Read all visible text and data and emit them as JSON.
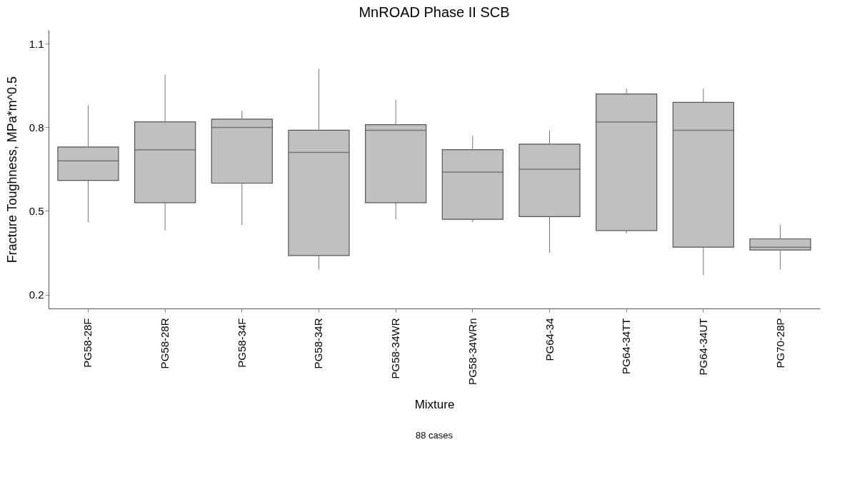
{
  "chart_data": {
    "type": "box",
    "title": "MnROAD Phase II SCB",
    "xlabel": "Mixture",
    "ylabel": "Fracture Toughness, MPa*m^0.5",
    "categories": [
      "PG58-28F",
      "PG58-28R",
      "PG58-34F",
      "PG58-34R",
      "PG58-34WR",
      "PG58-34WRn",
      "PG64-34",
      "PG64-34TT",
      "PG64-34UT",
      "PG70-28P"
    ],
    "boxes": [
      {
        "low": 0.46,
        "q1": 0.61,
        "median": 0.68,
        "q3": 0.73,
        "high": 0.88
      },
      {
        "low": 0.43,
        "q1": 0.53,
        "median": 0.72,
        "q3": 0.82,
        "high": 0.99
      },
      {
        "low": 0.45,
        "q1": 0.6,
        "median": 0.8,
        "q3": 0.83,
        "high": 0.86
      },
      {
        "low": 0.29,
        "q1": 0.34,
        "median": 0.71,
        "q3": 0.79,
        "high": 1.01
      },
      {
        "low": 0.47,
        "q1": 0.53,
        "median": 0.79,
        "q3": 0.81,
        "high": 0.9
      },
      {
        "low": 0.46,
        "q1": 0.47,
        "median": 0.64,
        "q3": 0.72,
        "high": 0.77
      },
      {
        "low": 0.35,
        "q1": 0.48,
        "median": 0.65,
        "q3": 0.74,
        "high": 0.79
      },
      {
        "low": 0.42,
        "q1": 0.43,
        "median": 0.82,
        "q3": 0.92,
        "high": 0.94
      },
      {
        "low": 0.27,
        "q1": 0.37,
        "median": 0.79,
        "q3": 0.89,
        "high": 0.94
      },
      {
        "low": 0.29,
        "q1": 0.36,
        "median": 0.37,
        "q3": 0.4,
        "high": 0.45
      }
    ],
    "color": "#c0c0c0",
    "ylim": [
      0.15,
      1.15
    ],
    "yticks": [
      0.2,
      0.5,
      0.8,
      1.1
    ],
    "grid": false,
    "annotations": [
      "88 cases"
    ]
  }
}
